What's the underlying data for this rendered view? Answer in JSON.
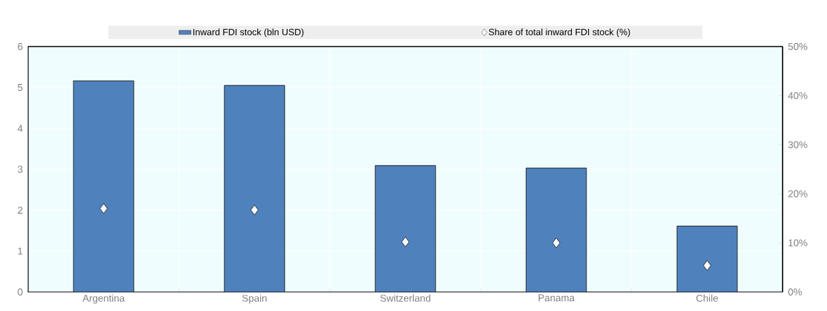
{
  "chart_data": {
    "type": "bar",
    "categories": [
      "Argentina",
      "Spain",
      "Switzerland",
      "Panama",
      "Chile"
    ],
    "series": [
      {
        "name": "Inward FDI stock (bln USD)",
        "color": "#4f81bd",
        "values": [
          5.16,
          5.05,
          3.09,
          3.03,
          1.61
        ]
      },
      {
        "name": "Share of total inward FDI stock (%)",
        "type": "scatter",
        "axis": "y2",
        "marker": "diamond",
        "color": "#ffffff",
        "values": [
          17.0,
          16.7,
          10.2,
          10.0,
          5.4
        ]
      }
    ],
    "ylim": [
      0,
      6
    ],
    "yticks": [
      0,
      1,
      2,
      3,
      4,
      5,
      6
    ],
    "y2lim": [
      0,
      50
    ],
    "y2ticks": [
      {
        "value": 0,
        "label": "0%"
      },
      {
        "value": 10,
        "label": "10%"
      },
      {
        "value": 20,
        "label": "20%"
      },
      {
        "value": 30,
        "label": "30%"
      },
      {
        "value": 40,
        "label": "40%"
      },
      {
        "value": 50,
        "label": "50%"
      }
    ],
    "grid": true,
    "legend": "top"
  }
}
